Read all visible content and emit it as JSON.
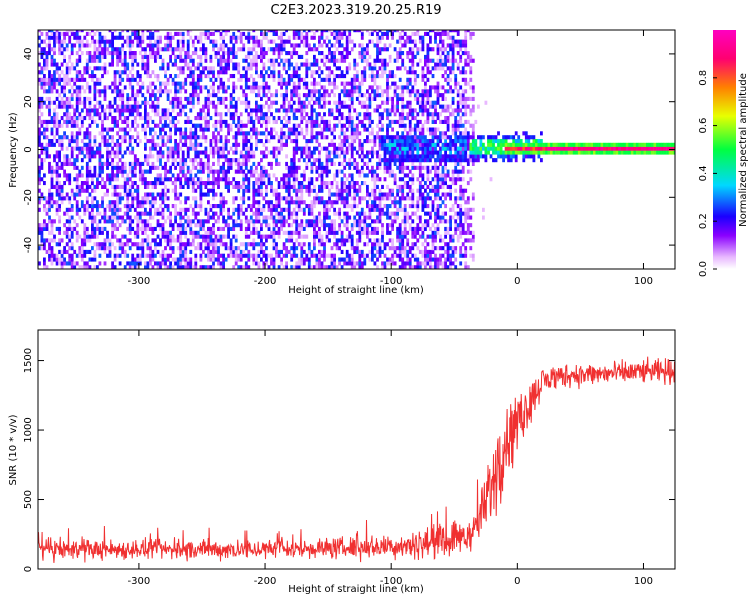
{
  "title": "C2E3.2023.319.20.25.R19",
  "chart_data": [
    {
      "type": "heatmap",
      "title": "C2E3.2023.319.20.25.R19",
      "xlabel": "Height of straight line (km)",
      "ylabel": "Frequency (Hz)",
      "xlim": [
        -380,
        125
      ],
      "ylim": [
        -50,
        50
      ],
      "xticks": [
        -300,
        -200,
        -100,
        0,
        100
      ],
      "yticks": [
        -40,
        -20,
        0,
        20,
        40
      ],
      "colorbar": {
        "label": "Normalized spectral amplitude",
        "range": [
          0,
          1
        ],
        "ticks": [
          0,
          0.2,
          0.4,
          0.6,
          0.8
        ],
        "tick_labels": [
          "0.0",
          "0.2",
          "0.4",
          "0.6",
          "0.8"
        ],
        "colormap": [
          "#ffffff",
          "#8a00ff",
          "#1a00ff",
          "#00d8ff",
          "#00ff40",
          "#e8ff00",
          "#ff8000",
          "#ff0070",
          "#ff00c0"
        ]
      },
      "features": [
        {
          "x_range": [
            -380,
            -40
          ],
          "freq_range": [
            -50,
            50
          ],
          "amplitude": [
            0.1,
            0.35
          ],
          "description_key": "noise"
        },
        {
          "x_range": [
            -40,
            -20
          ],
          "freq_range": [
            -50,
            50
          ],
          "amplitude": [
            0.0,
            0.15
          ]
        },
        {
          "x_range": [
            -110,
            20
          ],
          "freq_range": [
            -8,
            8
          ],
          "amplitude": [
            0.2,
            0.6
          ]
        },
        {
          "x_range": [
            20,
            125
          ],
          "freq_range": [
            -1,
            1
          ],
          "amplitude": [
            0.7,
            1.0
          ]
        }
      ]
    },
    {
      "type": "line",
      "xlabel": "Height of straight line (km)",
      "ylabel": "SNR (10 * v/v)",
      "xlim": [
        -380,
        125
      ],
      "ylim": [
        0,
        1720
      ],
      "xticks": [
        -300,
        -200,
        -100,
        0,
        100
      ],
      "yticks": [
        0,
        500,
        1000,
        1500
      ],
      "color": "#f03030",
      "series": [
        {
          "x": [
            -380,
            -300,
            -200,
            -100,
            -60,
            -40,
            -30,
            -20,
            -10,
            0,
            10,
            20,
            40,
            60,
            80,
            100,
            125
          ],
          "mean": [
            140,
            140,
            140,
            160,
            200,
            240,
            350,
            600,
            900,
            1050,
            1200,
            1350,
            1400,
            1400,
            1410,
            1420,
            1420
          ],
          "spread": [
            110,
            110,
            110,
            130,
            180,
            200,
            260,
            380,
            380,
            330,
            220,
            170,
            140,
            130,
            130,
            130,
            140
          ]
        }
      ]
    }
  ]
}
